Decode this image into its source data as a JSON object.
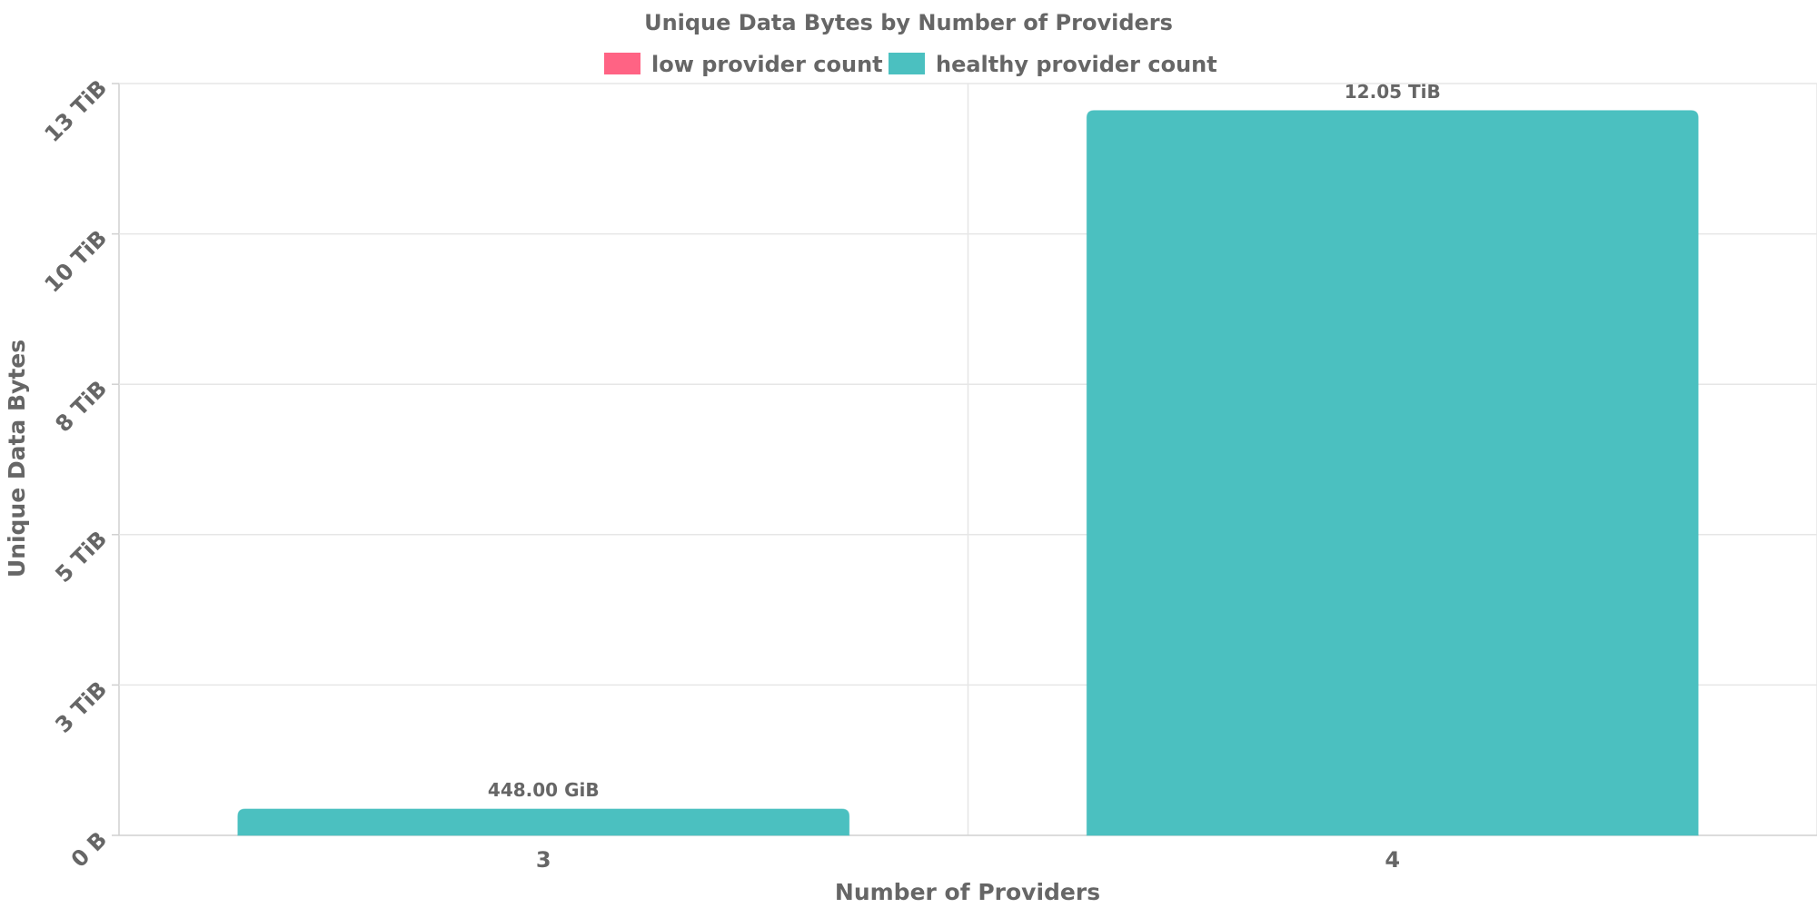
{
  "chart_data": {
    "type": "bar",
    "title": "Unique Data Bytes by Number of Providers",
    "xlabel": "Number of Providers",
    "ylabel": "Unique Data Bytes",
    "y_unit": "TiB",
    "categories": [
      "3",
      "4"
    ],
    "values": [
      0.4375,
      12.05
    ],
    "value_labels": [
      "448.00 GiB",
      "12.05 TiB"
    ],
    "bar_series": [
      "healthy provider count",
      "healthy provider count"
    ],
    "ylim": [
      0,
      12.5
    ],
    "y_ticks": [
      {
        "value": 0,
        "label": "0 B"
      },
      {
        "value": 2.5,
        "label": "3 TiB"
      },
      {
        "value": 5,
        "label": "5 TiB"
      },
      {
        "value": 7.5,
        "label": "8 TiB"
      },
      {
        "value": 10,
        "label": "10 TiB"
      },
      {
        "value": 12.5,
        "label": "13 TiB"
      }
    ],
    "legend": [
      {
        "name": "low provider count",
        "color": "#ff6384"
      },
      {
        "name": "healthy provider count",
        "color": "#4bc0c0"
      }
    ],
    "legend_position": "top",
    "grid": true
  }
}
